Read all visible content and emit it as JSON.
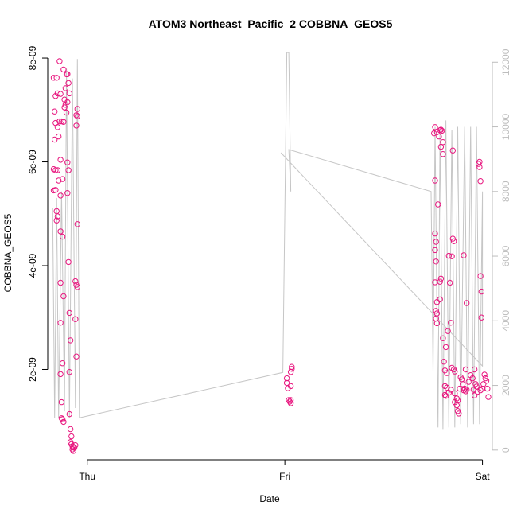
{
  "chart_data": {
    "type": "scatter",
    "title": "ATOM3 Northeast_Pacific_2 COBBNA_GEOS5",
    "xlabel": "Date",
    "ylabel": "COBBNA_GEOS5",
    "x_ticks": [
      {
        "label": "Thu",
        "value": 0
      },
      {
        "label": "Fri",
        "value": 1
      },
      {
        "label": "Sat",
        "value": 2
      }
    ],
    "xlim": [
      -0.2,
      2.05
    ],
    "ylim": [
      2.6e-10,
      8.2e-09
    ],
    "y_ticks": [
      {
        "label": "2e-09",
        "value": 2e-09
      },
      {
        "label": "4e-09",
        "value": 4e-09
      },
      {
        "label": "6e-09",
        "value": 6e-09
      },
      {
        "label": "8e-09",
        "value": 8e-09
      }
    ],
    "y2lim": [
      -300,
      12450
    ],
    "y2_ticks": [
      {
        "label": "0",
        "value": 0
      },
      {
        "label": "2000",
        "value": 2000
      },
      {
        "label": "4000",
        "value": 4000
      },
      {
        "label": "6000",
        "value": 6000
      },
      {
        "label": "8000",
        "value": 8000
      },
      {
        "label": "10000",
        "value": 10000
      },
      {
        "label": "12000",
        "value": 12000
      }
    ],
    "colors": {
      "points": "#e8177f",
      "altitude_line": "#c6c6c6",
      "right_axis": "#bdbdbd"
    },
    "series": [
      {
        "type": "scatter",
        "axis": "left",
        "points": [
          [
            -0.17,
            7.62e-09
          ],
          [
            -0.155,
            7.62e-09
          ],
          [
            -0.16,
            7.27e-09
          ],
          [
            -0.15,
            7.32e-09
          ],
          [
            -0.14,
            7.94e-09
          ],
          [
            -0.135,
            7.31e-09
          ],
          [
            -0.165,
            6.97e-09
          ],
          [
            -0.16,
            6.75e-09
          ],
          [
            -0.15,
            6.67e-09
          ],
          [
            -0.14,
            6.78e-09
          ],
          [
            -0.13,
            6.78e-09
          ],
          [
            -0.12,
            6.77e-09
          ],
          [
            -0.165,
            6.43e-09
          ],
          [
            -0.145,
            6.49e-09
          ],
          [
            -0.17,
            5.86e-09
          ],
          [
            -0.16,
            5.84e-09
          ],
          [
            -0.15,
            5.84e-09
          ],
          [
            -0.135,
            6.04e-09
          ],
          [
            -0.17,
            5.45e-09
          ],
          [
            -0.16,
            5.46e-09
          ],
          [
            -0.145,
            5.64e-09
          ],
          [
            -0.125,
            5.67e-09
          ],
          [
            -0.135,
            5.35e-09
          ],
          [
            -0.155,
            5.05e-09
          ],
          [
            -0.15,
            4.95e-09
          ],
          [
            -0.155,
            4.87e-09
          ],
          [
            -0.135,
            4.66e-09
          ],
          [
            -0.125,
            4.56e-09
          ],
          [
            -0.135,
            3.67e-09
          ],
          [
            -0.12,
            3.41e-09
          ],
          [
            -0.135,
            2.9e-09
          ],
          [
            -0.125,
            2.12e-09
          ],
          [
            -0.135,
            1.91e-09
          ],
          [
            -0.13,
            1.37e-09
          ],
          [
            -0.13,
            1.06e-09
          ],
          [
            -0.125,
            1.04e-09
          ],
          [
            -0.12,
            9.9e-10
          ],
          [
            -0.12,
            7.78e-09
          ],
          [
            -0.105,
            7.69e-09
          ],
          [
            -0.095,
            7.52e-09
          ],
          [
            -0.11,
            7.42e-09
          ],
          [
            -0.09,
            7.32e-09
          ],
          [
            -0.115,
            7.2e-09
          ],
          [
            -0.1,
            7.15e-09
          ],
          [
            -0.11,
            7.1e-09
          ],
          [
            -0.115,
            7.05e-09
          ],
          [
            -0.105,
            6.95e-09
          ],
          [
            -0.1,
            7.69e-09
          ],
          [
            -0.1,
            5.99e-09
          ],
          [
            -0.095,
            5.84e-09
          ],
          [
            -0.1,
            5.4e-09
          ],
          [
            -0.095,
            4.07e-09
          ],
          [
            -0.09,
            3.09e-09
          ],
          [
            -0.085,
            2.56e-09
          ],
          [
            -0.09,
            1.95e-09
          ],
          [
            -0.09,
            1.14e-09
          ],
          [
            -0.085,
            8.5e-10
          ],
          [
            -0.08,
            7.1e-10
          ],
          [
            -0.085,
            6e-10
          ],
          [
            -0.08,
            5.6e-10
          ],
          [
            -0.075,
            5.2e-10
          ],
          [
            -0.07,
            5e-10
          ],
          [
            -0.075,
            4.6e-10
          ],
          [
            -0.07,
            4.3e-10
          ],
          [
            -0.065,
            4.9e-10
          ],
          [
            -0.06,
            5.4e-10
          ],
          [
            -0.05,
            7.02e-09
          ],
          [
            -0.055,
            6.9e-09
          ],
          [
            -0.05,
            6.88e-09
          ],
          [
            -0.055,
            6.7e-09
          ],
          [
            -0.06,
            3.7e-09
          ],
          [
            -0.055,
            3.63e-09
          ],
          [
            -0.05,
            3.59e-09
          ],
          [
            -0.06,
            2.97e-09
          ],
          [
            -0.055,
            2.25e-09
          ],
          [
            -0.05,
            4.8e-09
          ],
          [
            1.01,
            1.83e-09
          ],
          [
            1.01,
            1.74e-09
          ],
          [
            1.015,
            1.64e-09
          ],
          [
            1.03,
            1.68e-09
          ],
          [
            1.03,
            1.95e-09
          ],
          [
            1.035,
            2.01e-09
          ],
          [
            1.035,
            2.05e-09
          ],
          [
            1.02,
            1.41e-09
          ],
          [
            1.025,
            1.38e-09
          ],
          [
            1.03,
            1.35e-09
          ],
          [
            1.03,
            1.41e-09
          ],
          [
            1.76,
            6.67e-09
          ],
          [
            1.755,
            6.55e-09
          ],
          [
            1.77,
            6.57e-09
          ],
          [
            1.78,
            6.49e-09
          ],
          [
            1.785,
            6.61e-09
          ],
          [
            1.79,
            6.62e-09
          ],
          [
            1.795,
            6.6e-09
          ],
          [
            1.8,
            6.38e-09
          ],
          [
            1.79,
            6.29e-09
          ],
          [
            1.8,
            6.15e-09
          ],
          [
            1.76,
            5.64e-09
          ],
          [
            1.775,
            5.18e-09
          ],
          [
            1.76,
            4.62e-09
          ],
          [
            1.765,
            4.46e-09
          ],
          [
            1.76,
            4.3e-09
          ],
          [
            1.765,
            4.08e-09
          ],
          [
            1.76,
            3.68e-09
          ],
          [
            1.77,
            3.3e-09
          ],
          [
            1.765,
            3.13e-09
          ],
          [
            1.77,
            3.08e-09
          ],
          [
            1.765,
            2.98e-09
          ],
          [
            1.77,
            2.89e-09
          ],
          [
            1.785,
            3.69e-09
          ],
          [
            1.79,
            3.75e-09
          ],
          [
            1.785,
            3.35e-09
          ],
          [
            1.8,
            2.6e-09
          ],
          [
            1.805,
            2.15e-09
          ],
          [
            1.815,
            2.43e-09
          ],
          [
            1.81,
            1.98e-09
          ],
          [
            1.82,
            1.93e-09
          ],
          [
            1.81,
            1.68e-09
          ],
          [
            1.82,
            1.65e-09
          ],
          [
            1.83,
            1.55e-09
          ],
          [
            1.81,
            1.51e-09
          ],
          [
            1.815,
            1.49e-09
          ],
          [
            1.84,
            1.61e-09
          ],
          [
            1.845,
            4.18e-09
          ],
          [
            1.85,
            4.52e-09
          ],
          [
            1.855,
            4.47e-09
          ],
          [
            1.85,
            6.22e-09
          ],
          [
            1.84,
            2.9e-09
          ],
          [
            1.845,
            2.03e-09
          ],
          [
            1.855,
            2e-09
          ],
          [
            1.86,
            1.96e-09
          ],
          [
            1.86,
            1.54e-09
          ],
          [
            1.87,
            1.44e-09
          ],
          [
            1.875,
            1.4e-09
          ],
          [
            1.87,
            1.31e-09
          ],
          [
            1.875,
            1.2e-09
          ],
          [
            1.88,
            1.15e-09
          ],
          [
            1.86,
            1.37e-09
          ],
          [
            1.885,
            1.63e-09
          ],
          [
            1.89,
            1.85e-09
          ],
          [
            1.895,
            1.81e-09
          ],
          [
            1.9,
            1.72e-09
          ],
          [
            1.905,
            1.6e-09
          ],
          [
            1.91,
            1.63e-09
          ],
          [
            1.915,
            1.58e-09
          ],
          [
            1.92,
            1.61e-09
          ],
          [
            1.93,
            1.76e-09
          ],
          [
            1.94,
            1.89e-09
          ],
          [
            1.95,
            1.83e-09
          ],
          [
            1.955,
            1.61e-09
          ],
          [
            1.96,
            1.5e-09
          ],
          [
            1.96,
            2e-09
          ],
          [
            1.965,
            1.72e-09
          ],
          [
            1.97,
            1.67e-09
          ],
          [
            1.975,
            1.57e-09
          ],
          [
            1.98,
            5.96e-09
          ],
          [
            1.985,
            6e-09
          ],
          [
            1.985,
            5.9e-09
          ],
          [
            1.99,
            5.63e-09
          ],
          [
            1.99,
            3.8e-09
          ],
          [
            1.995,
            3.5e-09
          ],
          [
            1.995,
            3e-09
          ],
          [
            1.99,
            1.6e-09
          ],
          [
            2.0,
            1.63e-09
          ],
          [
            2.005,
            1.72e-09
          ],
          [
            2.01,
            1.9e-09
          ],
          [
            2.015,
            1.83e-09
          ],
          [
            2.02,
            1.78e-09
          ],
          [
            2.025,
            1.63e-09
          ],
          [
            2.03,
            1.47e-09
          ],
          [
            1.835,
            3.67e-09
          ],
          [
            1.83,
            4.19e-09
          ],
          [
            1.825,
            2.74e-09
          ],
          [
            1.92,
            3.28e-09
          ],
          [
            1.905,
            4.2e-09
          ],
          [
            1.915,
            2e-09
          ]
        ]
      },
      {
        "type": "line",
        "axis": "right",
        "points": [
          [
            -0.175,
            7500
          ],
          [
            -0.165,
            1000
          ],
          [
            -0.155,
            7800
          ],
          [
            -0.145,
            1000
          ],
          [
            -0.13,
            8000
          ],
          [
            -0.115,
            1200
          ],
          [
            -0.105,
            11800
          ],
          [
            -0.09,
            1000
          ],
          [
            -0.075,
            11500
          ],
          [
            -0.06,
            1300
          ],
          [
            -0.05,
            12100
          ],
          [
            -0.04,
            1000
          ],
          [
            0.99,
            2400
          ],
          [
            1.01,
            12300
          ],
          [
            1.02,
            12300
          ],
          [
            1.03,
            8000
          ],
          [
            1.02,
            9300
          ],
          [
            1.74,
            8000
          ],
          [
            1.75,
            2400
          ],
          [
            1.76,
            10000
          ],
          [
            1.775,
            700
          ],
          [
            1.785,
            9900
          ],
          [
            1.8,
            650
          ],
          [
            1.815,
            10200
          ],
          [
            1.83,
            700
          ],
          [
            1.845,
            9900
          ],
          [
            1.86,
            700
          ],
          [
            1.875,
            10000
          ],
          [
            1.89,
            800
          ],
          [
            1.91,
            10000
          ],
          [
            1.925,
            700
          ],
          [
            1.94,
            10000
          ],
          [
            1.955,
            800
          ],
          [
            1.97,
            10000
          ],
          [
            1.985,
            800
          ],
          [
            2.0,
            8000
          ],
          [
            2.0,
            2600
          ],
          [
            0.98,
            9200
          ]
        ]
      }
    ]
  }
}
